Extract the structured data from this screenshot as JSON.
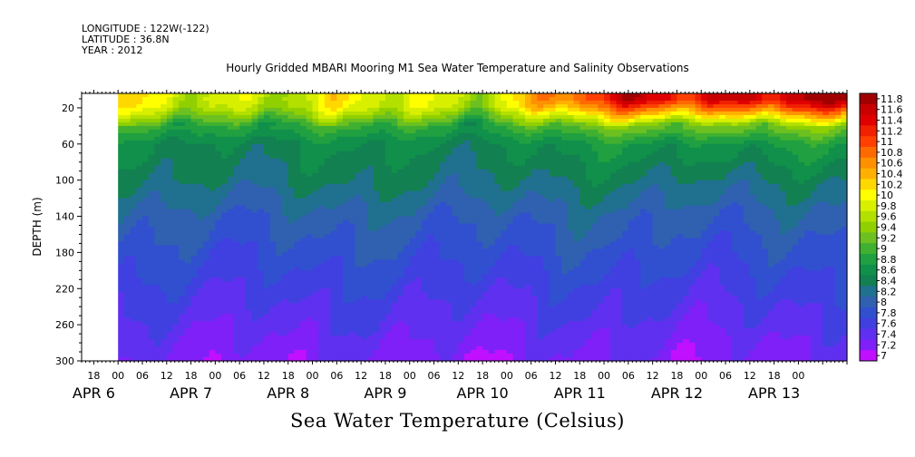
{
  "meta": {
    "longitude": "LONGITUDE : 122W(-122)",
    "latitude": "LATITUDE : 36.8N",
    "year": "YEAR : 2012"
  },
  "chart_data": {
    "type": "heatmap",
    "title": "Hourly Gridded MBARI Mooring M1 Sea Water Temperature and Salinity Observations",
    "xlabel": "Sea Water Temperature (Celsius)",
    "ylabel": "DEPTH (m)",
    "y_axis": {
      "ticks": [
        20,
        60,
        100,
        140,
        180,
        220,
        260,
        300
      ],
      "range": [
        4,
        300
      ],
      "inverted": true
    },
    "x_axis": {
      "hour_ticks": [
        "18",
        "00",
        "06",
        "12",
        "18",
        "00",
        "06",
        "12",
        "18",
        "00",
        "06",
        "12",
        "18",
        "00",
        "06",
        "12",
        "18",
        "00",
        "06",
        "12",
        "18",
        "00",
        "06",
        "12",
        "18",
        "00",
        "06",
        "12",
        "18",
        "00"
      ],
      "day_labels": [
        "APR 6",
        "APR 7",
        "APR 8",
        "APR 9",
        "APR 10",
        "APR 11",
        "APR 12",
        "APR 13"
      ],
      "range_hours": [
        -9,
        180
      ],
      "data_start_hour": 0
    },
    "colorbar": {
      "levels": [
        "11.8",
        "11.6",
        "11.4",
        "11.2",
        "11",
        "10.8",
        "10.6",
        "10.4",
        "10.2",
        "10",
        "9.8",
        "9.6",
        "9.4",
        "9.2",
        "9",
        "8.8",
        "8.6",
        "8.4",
        "8.2",
        "8",
        "7.8",
        "7.6",
        "7.4",
        "7.2",
        "7"
      ],
      "colors": [
        "#a00000",
        "#c80000",
        "#e00000",
        "#f02000",
        "#ff4000",
        "#ff6a00",
        "#ff9000",
        "#ffb000",
        "#ffd800",
        "#ffff00",
        "#d8f000",
        "#b4e000",
        "#90d000",
        "#6cc020",
        "#40b030",
        "#20a040",
        "#10904a",
        "#128050",
        "#207090",
        "#3060b0",
        "#3050d0",
        "#4040e0",
        "#6030f0",
        "#8020f8",
        "#c010ff"
      ]
    },
    "temperature_profile": {
      "depth_m": [
        10,
        20,
        40,
        60,
        100,
        140,
        180,
        220,
        260,
        300
      ],
      "temp_c_apr7": [
        9.9,
        9.8,
        9.0,
        8.6,
        8.4,
        8.1,
        7.9,
        7.7,
        7.5,
        7.3
      ],
      "temp_c_apr12": [
        11.6,
        11.0,
        9.4,
        8.8,
        8.4,
        8.1,
        7.9,
        7.7,
        7.5,
        7.3
      ]
    }
  }
}
